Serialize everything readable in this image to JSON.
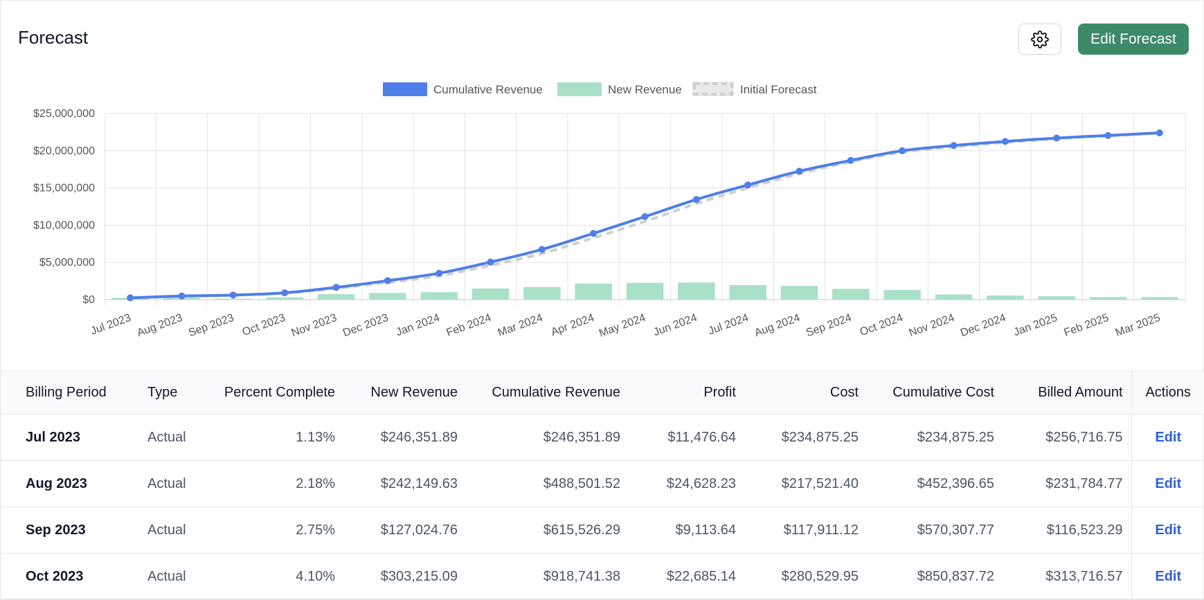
{
  "header": {
    "title": "Forecast",
    "edit_button_label": "Edit Forecast",
    "settings_icon": "gear-icon"
  },
  "colors": {
    "cumulative": "#4f7fe8",
    "new_revenue": "#a9e0c8",
    "initial_forecast": "#cfcfcf",
    "primary_button": "#3d8a68",
    "link": "#2f5fd7"
  },
  "chart_data": {
    "type": "line",
    "categories": [
      "Jul 2023",
      "Aug 2023",
      "Sep 2023",
      "Oct 2023",
      "Nov 2023",
      "Dec 2023",
      "Jan 2024",
      "Feb 2024",
      "Mar 2024",
      "Apr 2024",
      "May 2024",
      "Jun 2024",
      "Jul 2024",
      "Aug 2024",
      "Sep 2024",
      "Oct 2024",
      "Nov 2024",
      "Dec 2024",
      "Jan 2025",
      "Feb 2025",
      "Mar 2025"
    ],
    "legend": [
      "Cumulative Revenue",
      "New Revenue",
      "Initial Forecast"
    ],
    "legend_position": "top",
    "ylim": [
      0,
      25000000
    ],
    "yticks": [
      0,
      5000000,
      10000000,
      15000000,
      20000000,
      25000000
    ],
    "ytick_labels": [
      "$0",
      "$5,000,000",
      "$10,000,000",
      "$15,000,000",
      "$20,000,000",
      "$25,000,000"
    ],
    "grid": true,
    "series": [
      {
        "name": "Cumulative Revenue",
        "kind": "line",
        "values": [
          246352,
          488502,
          615526,
          918741,
          1650000,
          2550000,
          3550000,
          5050000,
          6750000,
          8900000,
          11150000,
          13450000,
          15400000,
          17250000,
          18700000,
          20000000,
          20700000,
          21250000,
          21700000,
          22050000,
          22400000
        ]
      },
      {
        "name": "New Revenue",
        "kind": "bar",
        "values": [
          246352,
          242150,
          127025,
          303215,
          730000,
          900000,
          1000000,
          1500000,
          1700000,
          2150000,
          2250000,
          2300000,
          1950000,
          1850000,
          1450000,
          1300000,
          700000,
          550000,
          450000,
          350000,
          350000
        ]
      },
      {
        "name": "Initial Forecast",
        "kind": "dashed-line",
        "values": [
          200000,
          420000,
          600000,
          880000,
          1500000,
          2300000,
          3200000,
          4600000,
          6200000,
          8300000,
          10500000,
          12900000,
          15000000,
          16900000,
          18500000,
          19800000,
          20500000,
          21100000,
          21600000,
          22000000,
          22350000
        ]
      }
    ]
  },
  "table": {
    "columns": [
      "Billing Period",
      "Type",
      "Percent Complete",
      "New Revenue",
      "Cumulative Revenue",
      "Profit",
      "Cost",
      "Cumulative Cost",
      "Billed Amount",
      "Actions"
    ],
    "rows": [
      {
        "period": "Jul 2023",
        "type": "Actual",
        "percent": "1.13%",
        "new_revenue": "$246,351.89",
        "cumulative_revenue": "$246,351.89",
        "profit": "$11,476.64",
        "cost": "$234,875.25",
        "cumulative_cost": "$234,875.25",
        "billed": "$256,716.75",
        "action": "Edit"
      },
      {
        "period": "Aug 2023",
        "type": "Actual",
        "percent": "2.18%",
        "new_revenue": "$242,149.63",
        "cumulative_revenue": "$488,501.52",
        "profit": "$24,628.23",
        "cost": "$217,521.40",
        "cumulative_cost": "$452,396.65",
        "billed": "$231,784.77",
        "action": "Edit"
      },
      {
        "period": "Sep 2023",
        "type": "Actual",
        "percent": "2.75%",
        "new_revenue": "$127,024.76",
        "cumulative_revenue": "$615,526.29",
        "profit": "$9,113.64",
        "cost": "$117,911.12",
        "cumulative_cost": "$570,307.77",
        "billed": "$116,523.29",
        "action": "Edit"
      },
      {
        "period": "Oct 2023",
        "type": "Actual",
        "percent": "4.10%",
        "new_revenue": "$303,215.09",
        "cumulative_revenue": "$918,741.38",
        "profit": "$22,685.14",
        "cost": "$280,529.95",
        "cumulative_cost": "$850,837.72",
        "billed": "$313,716.57",
        "action": "Edit"
      }
    ]
  }
}
